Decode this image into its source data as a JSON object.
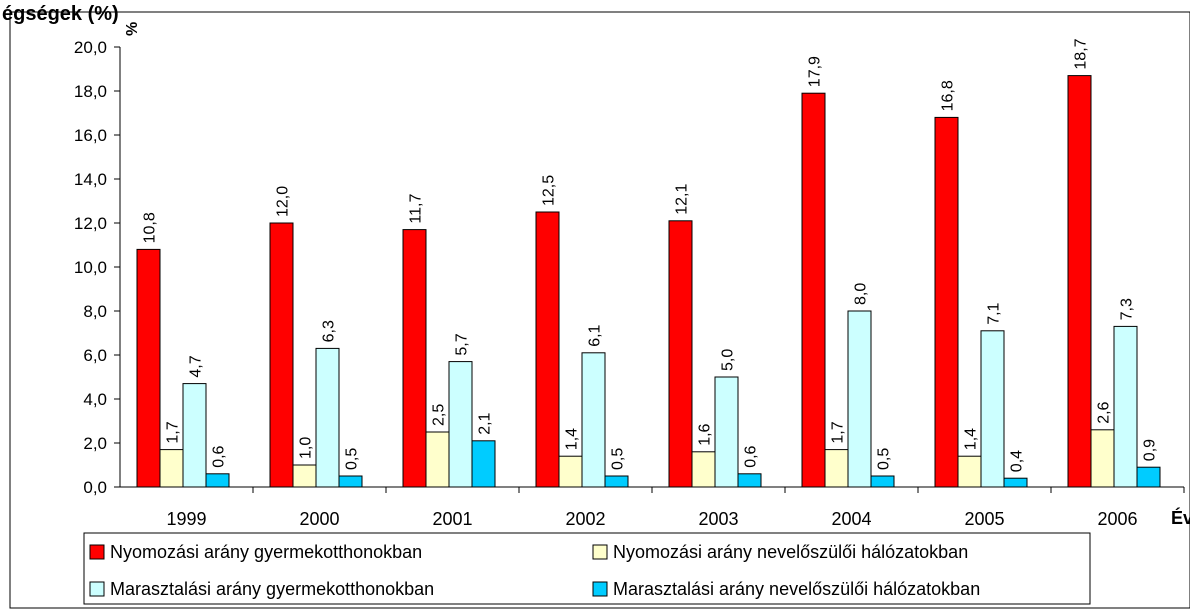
{
  "top_label": "égségek (%)",
  "chart_data": {
    "type": "bar",
    "ylabel": "%",
    "xlabel": "Év",
    "ylim": [
      0,
      20
    ],
    "yticks": [
      "0,0",
      "2,0",
      "4,0",
      "6,0",
      "8,0",
      "10,0",
      "12,0",
      "14,0",
      "16,0",
      "18,0",
      "20,0"
    ],
    "grid": false,
    "legend_position": "bottom",
    "categories": [
      "1999",
      "2000",
      "2001",
      "2002",
      "2003",
      "2004",
      "2005",
      "2006"
    ],
    "series": [
      {
        "name": "Nyomozási arány gyermekotthonokban",
        "color": "#ff0000",
        "values": [
          10.8,
          12.0,
          11.7,
          12.5,
          12.1,
          17.9,
          16.8,
          18.7
        ],
        "labels": [
          "10,8",
          "12,0",
          "11,7",
          "12,5",
          "12,1",
          "17,9",
          "16,8",
          "18,7"
        ]
      },
      {
        "name": "Nyomozási arány nevelőszülői hálózatokban",
        "color": "#ffffcc",
        "values": [
          1.7,
          1.0,
          2.5,
          1.4,
          1.6,
          1.7,
          1.4,
          2.6
        ],
        "labels": [
          "1,7",
          "1,0",
          "2,5",
          "1,4",
          "1,6",
          "1,7",
          "1,4",
          "2,6"
        ]
      },
      {
        "name": "Marasztalási arány gyermekotthonokban",
        "color": "#ccffff",
        "values": [
          4.7,
          6.3,
          5.7,
          6.1,
          5.0,
          8.0,
          7.1,
          7.3
        ],
        "labels": [
          "4,7",
          "6,3",
          "5,7",
          "6,1",
          "5,0",
          "8,0",
          "7,1",
          "7,3"
        ]
      },
      {
        "name": "Marasztalási arány nevelőszülői hálózatokban",
        "color": "#00ccff",
        "values": [
          0.6,
          0.5,
          2.1,
          0.5,
          0.6,
          0.5,
          0.4,
          0.9
        ],
        "labels": [
          "0,6",
          "0,5",
          "2,1",
          "0,5",
          "0,6",
          "0,5",
          "0,4",
          "0,9"
        ]
      }
    ]
  }
}
